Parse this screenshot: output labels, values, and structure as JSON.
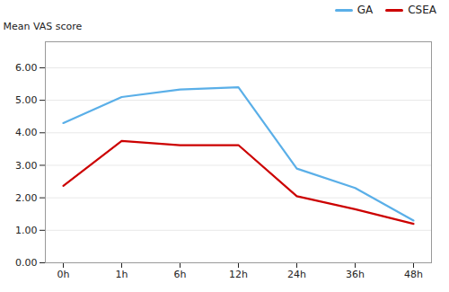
{
  "chart_data": {
    "type": "line",
    "categories": [
      "0h",
      "1h",
      "6h",
      "12h",
      "24h",
      "36h",
      "48h"
    ],
    "series": [
      {
        "name": "GA",
        "color": "#5AAFE8",
        "values": [
          4.3,
          5.1,
          5.33,
          5.4,
          2.9,
          2.3,
          1.3
        ]
      },
      {
        "name": "CSEA",
        "color": "#CC0000",
        "values": [
          2.37,
          3.75,
          3.62,
          3.62,
          2.05,
          1.65,
          1.2
        ]
      }
    ],
    "ylabel": "Mean VAS score",
    "ylim": [
      0.0,
      6.8
    ],
    "yticks": [
      {
        "value": 0,
        "label": "0.00"
      },
      {
        "value": 1,
        "label": "1.00"
      },
      {
        "value": 2,
        "label": "2.00"
      },
      {
        "value": 3,
        "label": "3.00"
      },
      {
        "value": 4,
        "label": "4.00"
      },
      {
        "value": 5,
        "label": "5.00"
      },
      {
        "value": 6,
        "label": "6.00"
      }
    ],
    "grid": true,
    "legend": "upper right"
  }
}
